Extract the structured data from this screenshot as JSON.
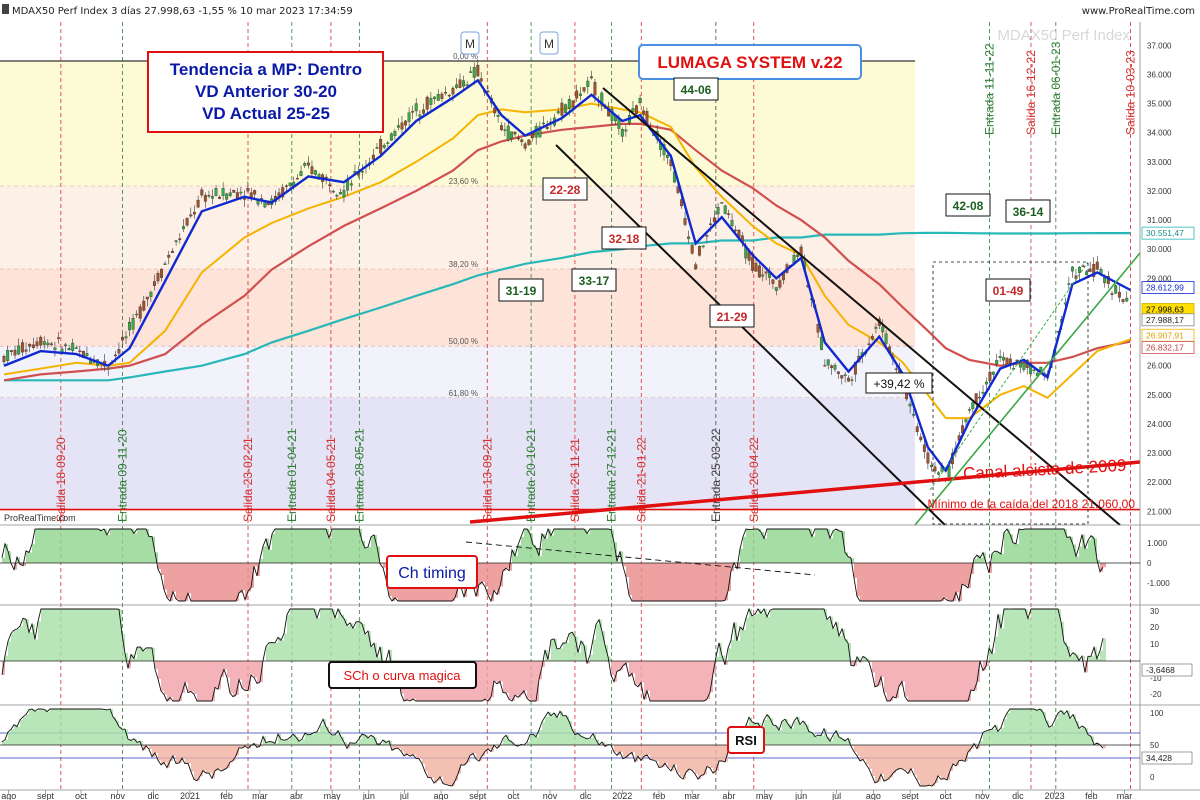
{
  "header": {
    "instrument": "MDAX50 Perf Index 3 días 27.998,63 -1,55 % 10 mar 2023 17:34:59",
    "site": "www.ProRealTime.com",
    "watermark": "MDAX50 Perf Index",
    "brand": "ProRealTime.com"
  },
  "colors": {
    "price": "#1f8a24",
    "ma_fast": "#1029d0",
    "ma_yellow": "#f4b400",
    "ma_red": "#d05050",
    "ma_teal": "#28b8b8",
    "entrada": "#2e7d32",
    "salida": "#d32f2f"
  },
  "annotations": {
    "trend_box": [
      "Tendencia a MP: Dentro",
      "VD Anterior 30-20",
      "VD Actual 25-25"
    ],
    "system_label": "LUMAGA SYSTEM v.22",
    "channel_label": "Canal alcista de 2009",
    "min_label": "Mínimo de la caída del 2018  21.060,00",
    "pct_label": "+39,42 %",
    "ch_timing": "Ch timing",
    "sch_label": "SCh o curva magica",
    "rsi_label": "RSI",
    "m_markers": [
      "M",
      "M"
    ]
  },
  "fib_levels": [
    "0,00 %",
    "23,60 %",
    "38,20 %",
    "50,00 %",
    "61,80 %"
  ],
  "scores": [
    {
      "text": "44-06",
      "color": "#1b5e20"
    },
    {
      "text": "22-28",
      "color": "#c62828"
    },
    {
      "text": "32-18",
      "color": "#c62828"
    },
    {
      "text": "31-19",
      "color": "#1b5e20"
    },
    {
      "text": "33-17",
      "color": "#1b5e20"
    },
    {
      "text": "21-29",
      "color": "#c62828"
    },
    {
      "text": "42-08",
      "color": "#1b5e20"
    },
    {
      "text": "36-14",
      "color": "#1b5e20"
    },
    {
      "text": "01-49",
      "color": "#c62828"
    }
  ],
  "vlines": [
    {
      "label": "Salida 18-09-20",
      "type": "salida"
    },
    {
      "label": "Entrada 09-11-20",
      "type": "entrada"
    },
    {
      "label": "Salida 23-02-21",
      "type": "salida"
    },
    {
      "label": "Entrada 01-04-21",
      "type": "entrada"
    },
    {
      "label": "Salida 04-05-21",
      "type": "salida"
    },
    {
      "label": "Entrada 28-05-21",
      "type": "entrada"
    },
    {
      "label": "Salida 13-09-21",
      "type": "salida"
    },
    {
      "label": "Entrada 20-10-21",
      "type": "entrada"
    },
    {
      "label": "Salida 26-11-21",
      "type": "salida"
    },
    {
      "label": "Entrada 27-12-21",
      "type": "entrada"
    },
    {
      "label": "Salida 21-01-22",
      "type": "salida"
    },
    {
      "label": "Entrada 25-03-22",
      "type": "neutral"
    },
    {
      "label": "Salida 26-04-22",
      "type": "salida"
    },
    {
      "label": "Entrada 11-11-22",
      "type": "entrada"
    },
    {
      "label": "Salida 16-12-22",
      "type": "salida"
    },
    {
      "label": "Entrada 06-01-23",
      "type": "entrada"
    },
    {
      "label": "Salida 10-03-23",
      "type": "salida"
    }
  ],
  "price_ticks": [
    "37.000",
    "36.000",
    "35.000",
    "34.000",
    "33.000",
    "32.000",
    "31.000",
    "30.000",
    "29.000",
    "28.000",
    "27.000",
    "26.000",
    "25.000",
    "24.000",
    "23.000",
    "22.000",
    "21.000"
  ],
  "price_tags": [
    {
      "text": "30.551,47",
      "bg": "#ffffff",
      "fg": "#1b8a8a",
      "border": "#28b8b8"
    },
    {
      "text": "28.612,99",
      "bg": "#ffffff",
      "fg": "#1029d0",
      "border": "#1029d0"
    },
    {
      "text": "27.998,63",
      "bg": "#ffe000",
      "fg": "#000000",
      "border": "#d4b000"
    },
    {
      "text": "27.988,17",
      "bg": "#ffffff",
      "fg": "#222222",
      "border": "#888888"
    },
    {
      "text": "26.907,91",
      "bg": "#ffffff",
      "fg": "#e0a000",
      "border": "#f4b400"
    },
    {
      "text": "26.832,17",
      "bg": "#ffffff",
      "fg": "#c04040",
      "border": "#d05050"
    }
  ],
  "ch_ticks": [
    "1.000",
    "0",
    "-1.000"
  ],
  "sch_ticks": [
    "30",
    "20",
    "10",
    "-10",
    "-20"
  ],
  "sch_tag": "-3,6468",
  "rsi_ticks": [
    "100",
    "50",
    "0"
  ],
  "rsi_tag": "34,428",
  "x_labels": [
    "ago",
    "sept",
    "oct",
    "nov",
    "dic",
    "2021",
    "feb",
    "mar",
    "abr",
    "may",
    "jun",
    "jul",
    "ago",
    "sept",
    "oct",
    "nov",
    "dic",
    "2022",
    "feb",
    "mar",
    "abr",
    "may",
    "jun",
    "jul",
    "ago",
    "sept",
    "oct",
    "nov",
    "dic",
    "2023",
    "feb",
    "mar"
  ],
  "chart_data": {
    "type": "line",
    "title": "MDAX50 Perf Index 3 días",
    "ylim": [
      20600,
      37800
    ],
    "y_scale": "linear",
    "x": [
      "2020-08-01",
      "2020-09-01",
      "2020-10-01",
      "2020-10-28",
      "2020-11-15",
      "2020-12-15",
      "2021-01-15",
      "2021-02-20",
      "2021-03-15",
      "2021-04-15",
      "2021-05-15",
      "2021-06-15",
      "2021-07-15",
      "2021-08-15",
      "2021-09-05",
      "2021-09-25",
      "2021-10-15",
      "2021-11-15",
      "2021-12-10",
      "2022-01-05",
      "2022-01-20",
      "2022-02-15",
      "2022-03-08",
      "2022-03-30",
      "2022-04-25",
      "2022-05-15",
      "2022-06-05",
      "2022-06-25",
      "2022-07-15",
      "2022-08-10",
      "2022-08-30",
      "2022-09-20",
      "2022-10-05",
      "2022-10-25",
      "2022-11-20",
      "2022-12-10",
      "2022-12-30",
      "2023-01-20",
      "2023-02-10",
      "2023-03-10"
    ],
    "series": [
      {
        "values": [
          26300,
          26900,
          26500,
          26000,
          27200,
          29500,
          31800,
          32000,
          31600,
          32800,
          32000,
          33500,
          34800,
          35500,
          36100,
          34200,
          33600,
          34800,
          35700,
          34000,
          35000,
          33000,
          29600,
          31600,
          29500,
          28800,
          30000,
          26200,
          25500,
          27500,
          25400,
          22800,
          22100,
          24500,
          26200,
          26000,
          25600,
          29200,
          29300,
          28000
        ]
      },
      {
        "values": [
          26000,
          26500,
          26400,
          26000,
          26600,
          28900,
          31300,
          31800,
          31600,
          32500,
          32300,
          33200,
          34400,
          35200,
          35800,
          34600,
          33900,
          34500,
          35300,
          34400,
          34600,
          33200,
          30200,
          31100,
          29800,
          29000,
          29700,
          26800,
          25800,
          27000,
          25700,
          23200,
          22400,
          24100,
          25900,
          26200,
          25600,
          28800,
          29200,
          28600
        ]
      },
      {
        "values": [
          25700,
          25900,
          26100,
          26000,
          26100,
          27200,
          29200,
          30400,
          30900,
          31400,
          31800,
          32300,
          33000,
          33800,
          34600,
          34800,
          34700,
          34800,
          35000,
          34800,
          34700,
          34200,
          32800,
          31800,
          30800,
          30200,
          29800,
          28400,
          27400,
          26800,
          26100,
          25000,
          24200,
          24200,
          25000,
          25300,
          24900,
          25700,
          26500,
          26908
        ]
      },
      {
        "values": [
          25500,
          25700,
          25800,
          25900,
          26000,
          26400,
          27400,
          28400,
          29300,
          30100,
          30800,
          31400,
          32000,
          32700,
          33400,
          33700,
          33900,
          34100,
          34200,
          34300,
          34300,
          34100,
          33400,
          32700,
          32100,
          31500,
          31000,
          30400,
          29600,
          28800,
          28000,
          27200,
          26600,
          26200,
          26000,
          26100,
          26100,
          26300,
          26600,
          26832
        ]
      },
      {
        "values": [
          25500,
          25500,
          25500,
          25500,
          25600,
          25800,
          26000,
          26400,
          26800,
          27200,
          27600,
          28000,
          28400,
          28800,
          29100,
          29300,
          29500,
          29700,
          29900,
          30000,
          30100,
          30200,
          30200,
          30300,
          30300,
          30400,
          30400,
          30500,
          30500,
          30500,
          30550,
          30560,
          30560,
          30550,
          30540,
          30540,
          30540,
          30550,
          30551,
          30551
        ]
      }
    ]
  }
}
